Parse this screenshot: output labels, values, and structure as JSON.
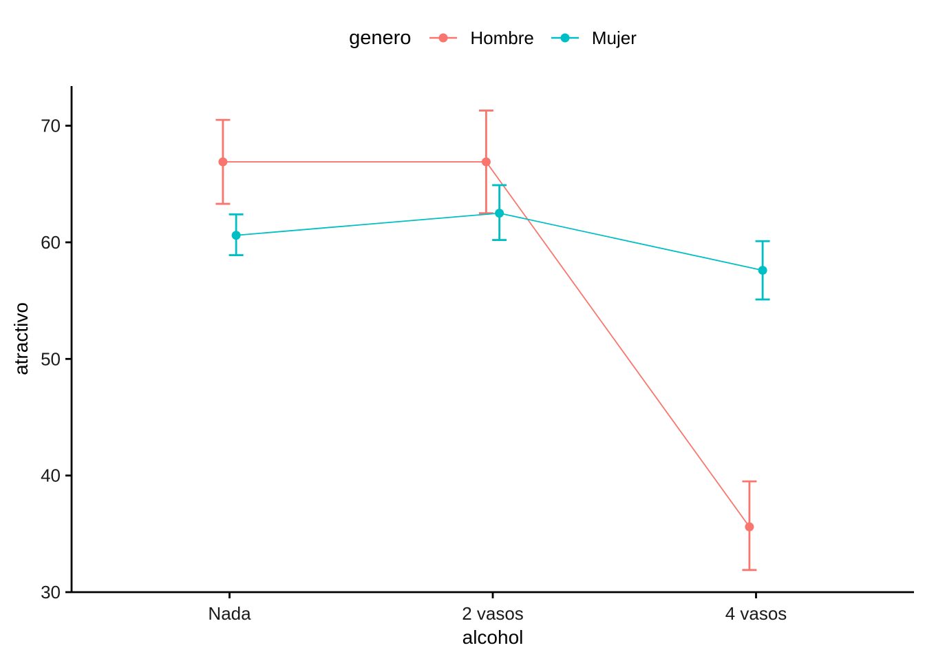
{
  "chart_data": {
    "type": "line",
    "title": "",
    "xlabel": "alcohol",
    "ylabel": "atractivo",
    "categories": [
      "Nada",
      "2 vasos",
      "4 vasos"
    ],
    "y_ticks": [
      30,
      40,
      50,
      60,
      70
    ],
    "ylim": [
      30,
      73.4
    ],
    "grid": false,
    "legend": {
      "title": "genero",
      "position": "top"
    },
    "series": [
      {
        "name": "Hombre",
        "color": "#F8766D",
        "values": [
          66.9,
          66.9,
          35.6
        ],
        "ci_low": [
          63.3,
          62.5,
          31.9
        ],
        "ci_high": [
          70.5,
          71.3,
          39.5
        ]
      },
      {
        "name": "Mujer",
        "color": "#00BFC4",
        "values": [
          60.6,
          62.5,
          57.6
        ],
        "ci_low": [
          58.9,
          60.2,
          55.1
        ],
        "ci_high": [
          62.4,
          64.9,
          60.1
        ]
      }
    ]
  }
}
